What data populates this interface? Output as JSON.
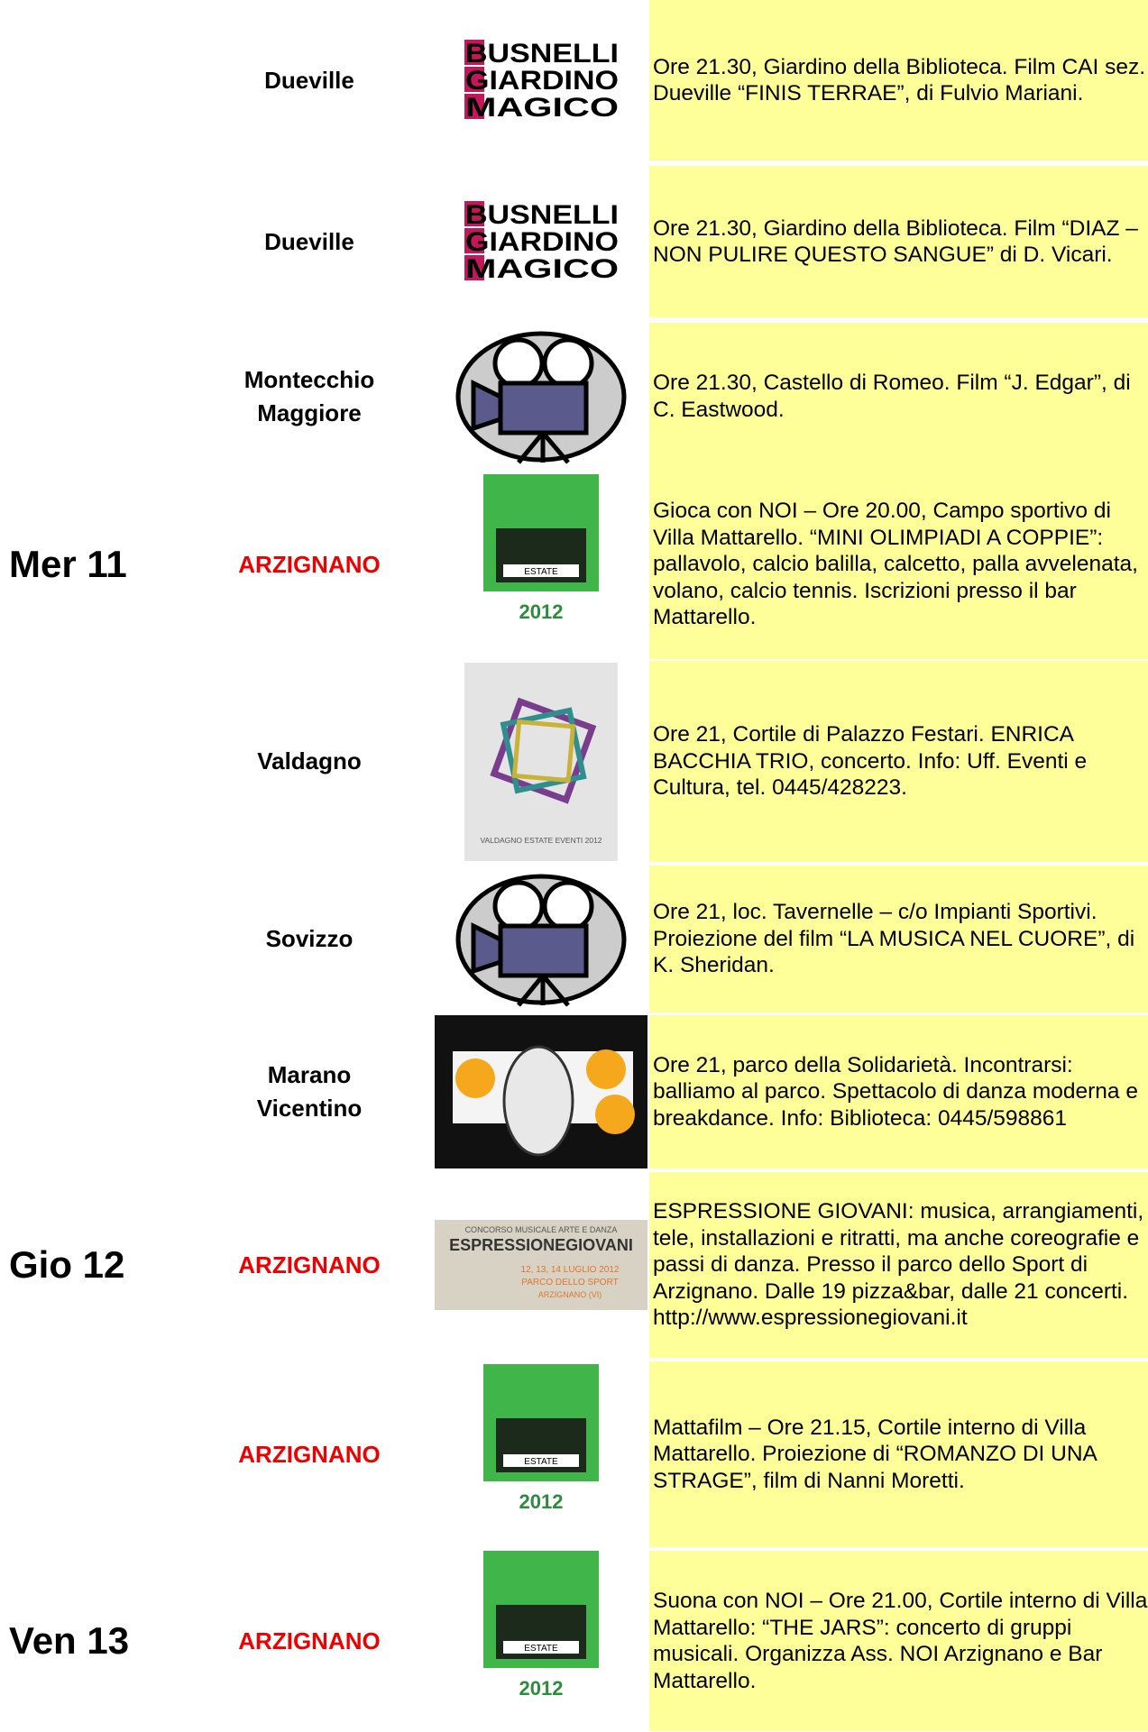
{
  "rows": [
    {
      "day": null,
      "city": [
        "Dueville"
      ],
      "image": {
        "kind": "busnelli",
        "lines": [
          "BUSNELLI",
          "GIARDINO",
          "MAGICO"
        ]
      },
      "text": "Ore 21.30, Giardino della Biblioteca. Film CAI sez. Dueville “FINIS TERRAE”, di Fulvio Mariani."
    },
    {
      "day": null,
      "city": [
        "Dueville"
      ],
      "image": {
        "kind": "busnelli",
        "lines": [
          "BUSNELLI",
          "GIARDINO",
          "MAGICO"
        ]
      },
      "text": "Ore 21.30, Giardino della Biblioteca. Film “DIAZ – NON PULIRE QUESTO SANGUE” di D. Vicari."
    },
    {
      "day": null,
      "city": [
        "Montecchio",
        "Maggiore"
      ],
      "image": {
        "kind": "camera"
      },
      "text": "Ore 21.30, Castello di Romeo. Film “J. Edgar”, di C. Eastwood."
    },
    {
      "day": "Mer 11",
      "city": [
        "ARZIGNANO"
      ],
      "image": {
        "kind": "estate",
        "lines": [
          "ESTATE",
          "2012"
        ]
      },
      "text": "Gioca con NOI – Ore 20.00, Campo sportivo di Villa Mattarello. “MINI OLIMPIADI A COPPIE”: pallavolo, calcio balilla, calcetto, palla avvelenata, volano, calcio tennis. Iscrizioni presso il bar Mattarello."
    },
    {
      "day": null,
      "city": [
        "Valdagno"
      ],
      "image": {
        "kind": "valdagno",
        "lines": [
          "VALDAGNO ESTATE EVENTI 2012"
        ]
      },
      "text": "Ore 21, Cortile di Palazzo Festari. ENRICA BACCHIA TRIO, concerto. Info: Uff. Eventi e Cultura, tel. 0445/428223."
    },
    {
      "day": null,
      "city": [
        "Sovizzo"
      ],
      "image": {
        "kind": "camera"
      },
      "text": "Ore 21, loc. Tavernelle – c/o Impianti Sportivi. Proiezione del film “LA MUSICA NEL CUORE”, di K. Sheridan."
    },
    {
      "day": null,
      "city": [
        "Marano",
        "Vicentino"
      ],
      "image": {
        "kind": "goat"
      },
      "text": "Ore 21, parco della Solidarietà. Incontrarsi: balliamo al parco. Spettacolo di danza moderna e breakdance. Info: Biblioteca: 0445/598861"
    },
    {
      "day": "Gio 12",
      "city": [
        "ARZIGNANO"
      ],
      "image": {
        "kind": "espressione",
        "lines": [
          "CONCORSO MUSICALE ARTE E DANZA",
          "ESPRESSIONEGIOVANI",
          "12, 13, 14 LUGLIO 2012",
          "PARCO DELLO SPORT",
          "ARZIGNANO (VI)"
        ]
      },
      "text": "ESPRESSIONE GIOVANI: musica, arrangiamenti, tele, installazioni e ritratti, ma anche coreografie e passi di danza. Presso il parco dello Sport di Arzignano. Dalle 19 pizza&bar, dalle 21 concerti. http://www.espressionegiovani.it"
    },
    {
      "day": null,
      "city": [
        "ARZIGNANO"
      ],
      "image": {
        "kind": "estate",
        "lines": [
          "ESTATE",
          "2012"
        ]
      },
      "text": "Mattafilm – Ore 21.15, Cortile interno di Villa Mattarello. Proiezione di “ROMANZO DI UNA STRAGE”, film di Nanni Moretti."
    },
    {
      "day": "Ven 13",
      "city": [
        "ARZIGNANO"
      ],
      "image": {
        "kind": "estate",
        "lines": [
          "ESTATE",
          "2012"
        ]
      },
      "text": "Suona con NOI – Ore 21.00, Cortile interno di Villa Mattarello: “THE JARS”: concerto di gruppi musicali. Organizza Ass. NOI Arzignano e Bar Mattarello."
    }
  ]
}
